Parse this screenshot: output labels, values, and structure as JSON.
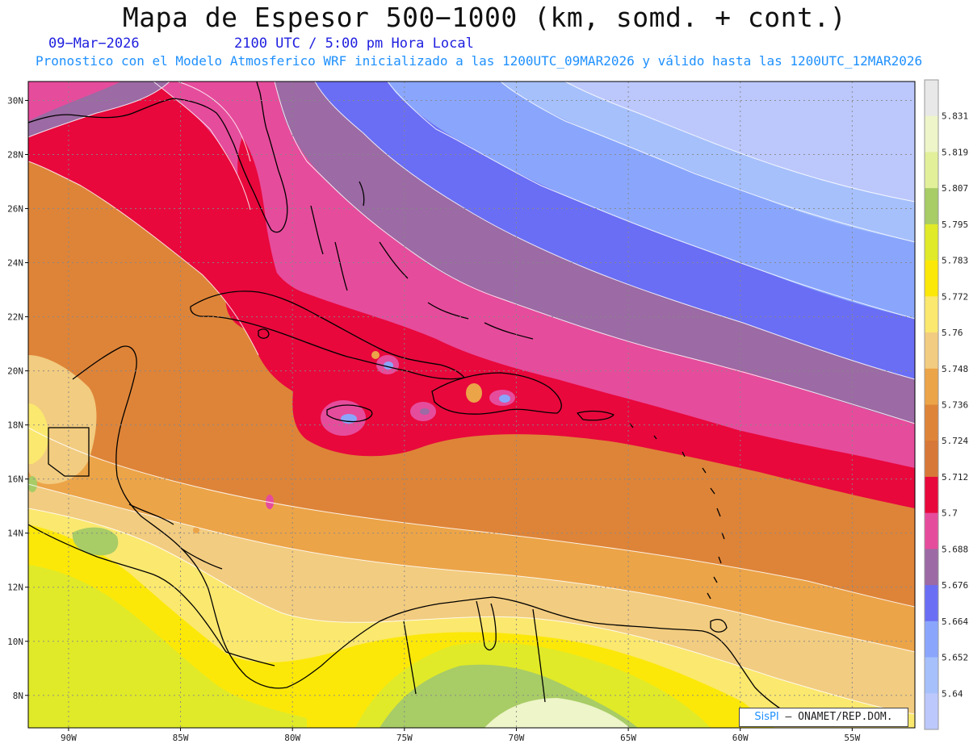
{
  "header": {
    "title": "Mapa de Espesor 500−1000 (km, somd. + cont.)",
    "date": "09−Mar−2026",
    "time": "2100 UTC / 5:00 pm Hora Local",
    "forecast_note": "Pronostico con el Modelo Atmosferico WRF inicializado a las 1200UTC_09MAR2026 y válido hasta las  1200UTC_12MAR2026"
  },
  "axes": {
    "lat_labels": [
      "30N",
      "28N",
      "26N",
      "24N",
      "22N",
      "20N",
      "18N",
      "16N",
      "14N",
      "12N",
      "10N",
      "8N"
    ],
    "lat_values": [
      30,
      28,
      26,
      24,
      22,
      20,
      18,
      16,
      14,
      12,
      10,
      8
    ],
    "lon_labels": [
      "90W",
      "85W",
      "80W",
      "75W",
      "70W",
      "65W",
      "60W",
      "55W"
    ],
    "lon_values": [
      -90,
      -85,
      -80,
      -75,
      -70,
      -65,
      -60,
      -55
    ],
    "lat_range": [
      6.8,
      30.7
    ],
    "lon_range": [
      -91.8,
      -52.2
    ],
    "grid": true
  },
  "colorbar": {
    "labels": [
      "5.831",
      "5.819",
      "5.807",
      "5.795",
      "5.783",
      "5.772",
      "5.76",
      "5.748",
      "5.736",
      "5.724",
      "5.712",
      "5.7",
      "5.688",
      "5.676",
      "5.664",
      "5.652",
      "5.64"
    ],
    "colors": [
      "#e8e8e8",
      "#eef5c8",
      "#e2f09a",
      "#a8cc66",
      "#e0ea28",
      "#fce808",
      "#fbe86e",
      "#f2cc80",
      "#eca448",
      "#de8438",
      "#d87838",
      "#e8083c",
      "#e64c9c",
      "#9c6aa4",
      "#6a6ef4",
      "#8aa6fc",
      "#a6c0fc",
      "#bcc8fc"
    ]
  },
  "credit": {
    "brand": "SisPI",
    "text": " – ONAMET/REP.DOM."
  }
}
